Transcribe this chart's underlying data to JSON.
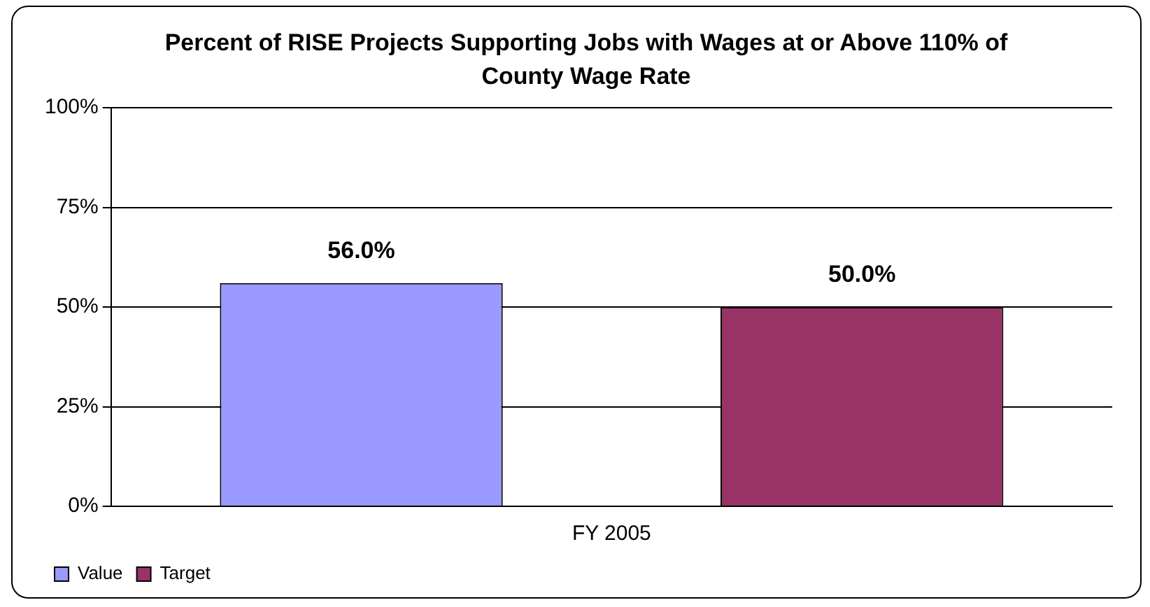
{
  "chart_data": {
    "type": "bar",
    "title": "Percent of RISE Projects Supporting Jobs with Wages at or Above 110% of County Wage Rate",
    "categories": [
      "FY 2005"
    ],
    "series": [
      {
        "name": "Value",
        "color": "#9999ff",
        "values": [
          56
        ],
        "value_labels": [
          "56.0%"
        ]
      },
      {
        "name": "Target",
        "color": "#993366",
        "values": [
          50
        ],
        "value_labels": [
          "50.0%"
        ]
      }
    ],
    "ylim": [
      0,
      100
    ],
    "yticks": [
      {
        "value": 0,
        "label": "0%"
      },
      {
        "value": 25,
        "label": "25%"
      },
      {
        "value": 50,
        "label": "50%"
      },
      {
        "value": 75,
        "label": "75%"
      },
      {
        "value": 100,
        "label": "100%"
      }
    ],
    "grid": "y",
    "legend": "bottom left"
  }
}
